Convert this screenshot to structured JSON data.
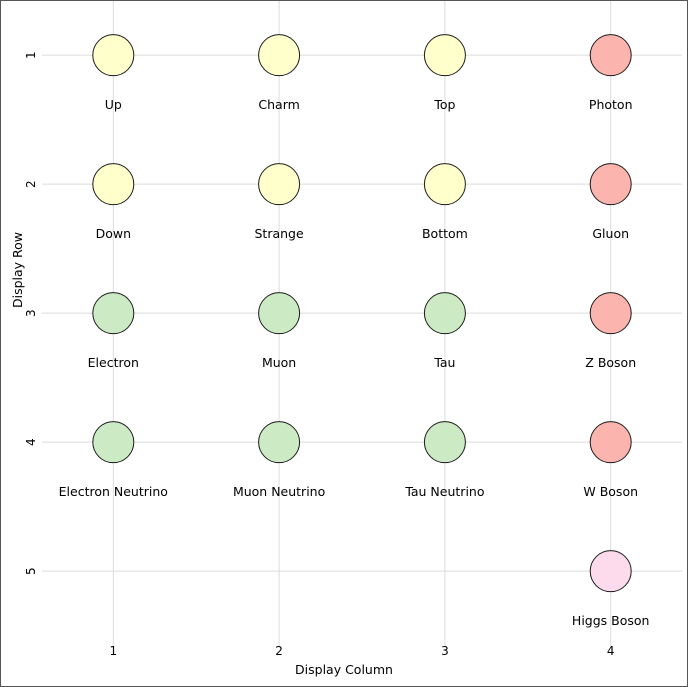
{
  "chart_data": {
    "type": "scatter",
    "xlabel": "Display Column",
    "ylabel": "Display Row",
    "xlim": [
      0.57,
      4.43
    ],
    "ylim": [
      0.58,
      5.58
    ],
    "x_ticks": [
      "1",
      "2",
      "3",
      "4"
    ],
    "y_ticks": [
      "1",
      "2",
      "3",
      "4",
      "5"
    ],
    "grid": true,
    "legend": "none",
    "points": [
      {
        "label": "Up",
        "x": 1,
        "y": 1,
        "color": "#ffffcc"
      },
      {
        "label": "Charm",
        "x": 2,
        "y": 1,
        "color": "#ffffcc"
      },
      {
        "label": "Top",
        "x": 3,
        "y": 1,
        "color": "#ffffcc"
      },
      {
        "label": "Photon",
        "x": 4,
        "y": 1,
        "color": "#fbb4ae"
      },
      {
        "label": "Down",
        "x": 1,
        "y": 2,
        "color": "#ffffcc"
      },
      {
        "label": "Strange",
        "x": 2,
        "y": 2,
        "color": "#ffffcc"
      },
      {
        "label": "Bottom",
        "x": 3,
        "y": 2,
        "color": "#ffffcc"
      },
      {
        "label": "Gluon",
        "x": 4,
        "y": 2,
        "color": "#fbb4ae"
      },
      {
        "label": "Electron",
        "x": 1,
        "y": 3,
        "color": "#ccebc5"
      },
      {
        "label": "Muon",
        "x": 2,
        "y": 3,
        "color": "#ccebc5"
      },
      {
        "label": "Tau",
        "x": 3,
        "y": 3,
        "color": "#ccebc5"
      },
      {
        "label": "Z Boson",
        "x": 4,
        "y": 3,
        "color": "#fbb4ae"
      },
      {
        "label": "Electron Neutrino",
        "x": 1,
        "y": 4,
        "color": "#ccebc5"
      },
      {
        "label": "Muon Neutrino",
        "x": 2,
        "y": 4,
        "color": "#ccebc5"
      },
      {
        "label": "Tau Neutrino",
        "x": 3,
        "y": 4,
        "color": "#ccebc5"
      },
      {
        "label": "W Boson",
        "x": 4,
        "y": 4,
        "color": "#fbb4ae"
      },
      {
        "label": "Higgs Boson",
        "x": 4,
        "y": 5,
        "color": "#fddaec"
      }
    ]
  }
}
